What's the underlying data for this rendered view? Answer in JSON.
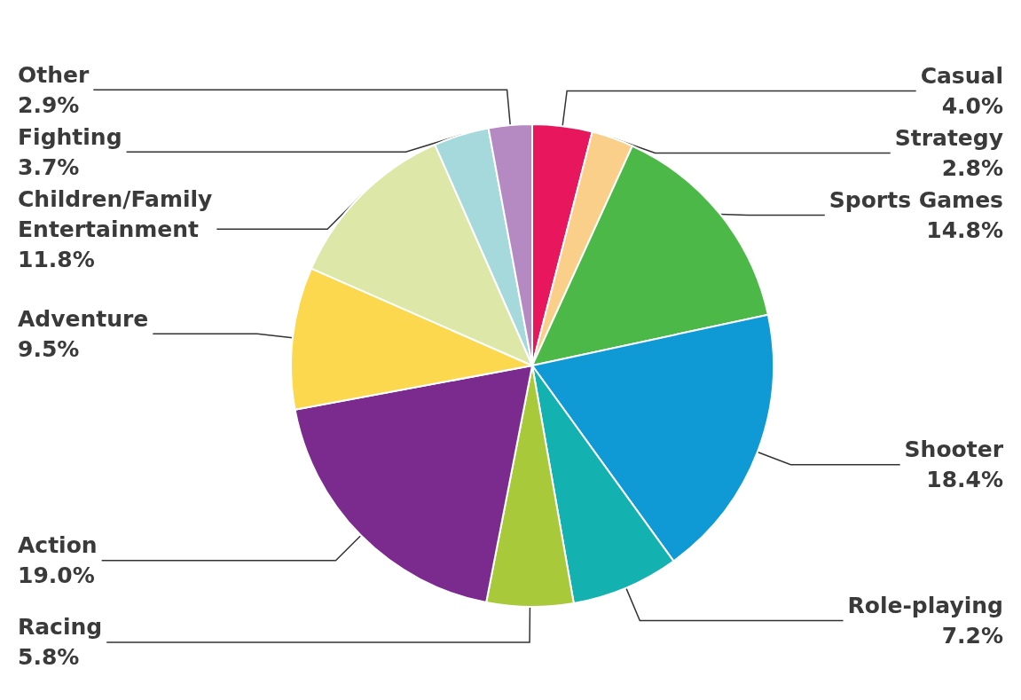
{
  "chart_data": {
    "type": "pie",
    "categories": [
      "Casual",
      "Strategy",
      "Sports Games",
      "Shooter",
      "Role-playing",
      "Racing",
      "Action",
      "Adventure",
      "Children/Family\nEntertainment",
      "Fighting",
      "Other"
    ],
    "values": [
      4.0,
      2.8,
      14.8,
      18.4,
      7.2,
      5.8,
      19.0,
      9.5,
      11.8,
      3.7,
      2.9
    ],
    "value_labels": [
      "4.0%",
      "2.8%",
      "14.8%",
      "18.4%",
      "7.2%",
      "5.8%",
      "19.0%",
      "9.5%",
      "11.8%",
      "3.7%",
      "2.9%"
    ],
    "colors": [
      "#e8175d",
      "#f9cf8a",
      "#4cb848",
      "#0f9ad6",
      "#13b1b0",
      "#a8c93a",
      "#7b2a8e",
      "#fcd84e",
      "#dde8a8",
      "#a6d9dc",
      "#b589c1"
    ],
    "legend": false
  }
}
